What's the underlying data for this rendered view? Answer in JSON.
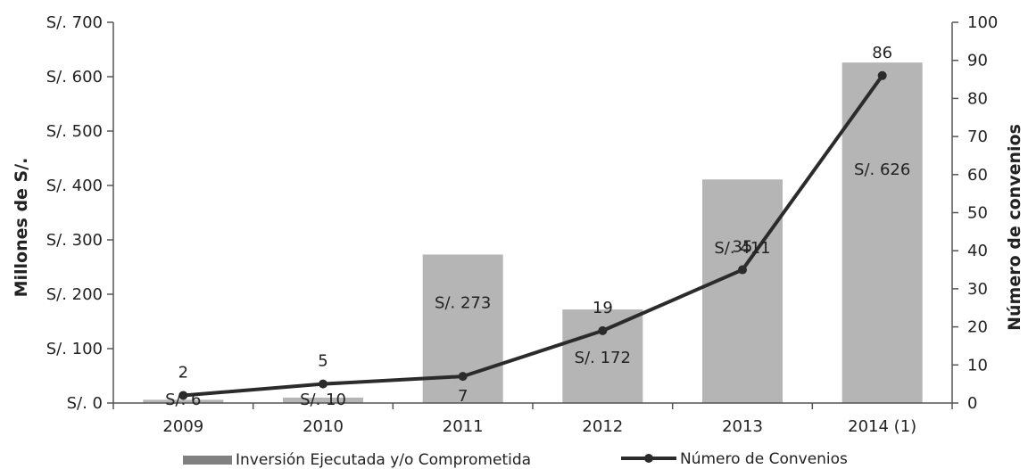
{
  "chart_data": {
    "type": "bar",
    "categories": [
      "2009",
      "2010",
      "2011",
      "2012",
      "2013",
      "2014 (1)"
    ],
    "ylabel": "Millones de S/.",
    "ylabel_right": "Número de convenios",
    "ylim": [
      0,
      700
    ],
    "ylim_right": [
      0,
      100
    ],
    "yticks": [
      "S/. 0",
      "S/. 100",
      "S/. 200",
      "S/. 300",
      "S/. 400",
      "S/. 500",
      "S/. 600",
      "S/. 700"
    ],
    "yticks_right": [
      "0",
      "10",
      "20",
      "30",
      "40",
      "50",
      "60",
      "70",
      "80",
      "90",
      "100"
    ],
    "grid": false,
    "legend_position": "bottom",
    "series": [
      {
        "name": "Inversión Ejecutada y/o Comprometida",
        "type": "bar",
        "axis": "left",
        "values": [
          6,
          10,
          273,
          172,
          411,
          626
        ],
        "labels": [
          "S/. 6",
          "S/. 10",
          "S/. 273",
          "S/. 172",
          "S/. 411",
          "S/. 626"
        ],
        "color": "#b5b5b5"
      },
      {
        "name": "Número de Convenios",
        "type": "line",
        "axis": "right",
        "values": [
          2,
          5,
          7,
          19,
          35,
          86
        ],
        "labels": [
          "2",
          "5",
          "7",
          "19",
          "35",
          "86"
        ],
        "color": "#2b2b2b"
      }
    ]
  }
}
